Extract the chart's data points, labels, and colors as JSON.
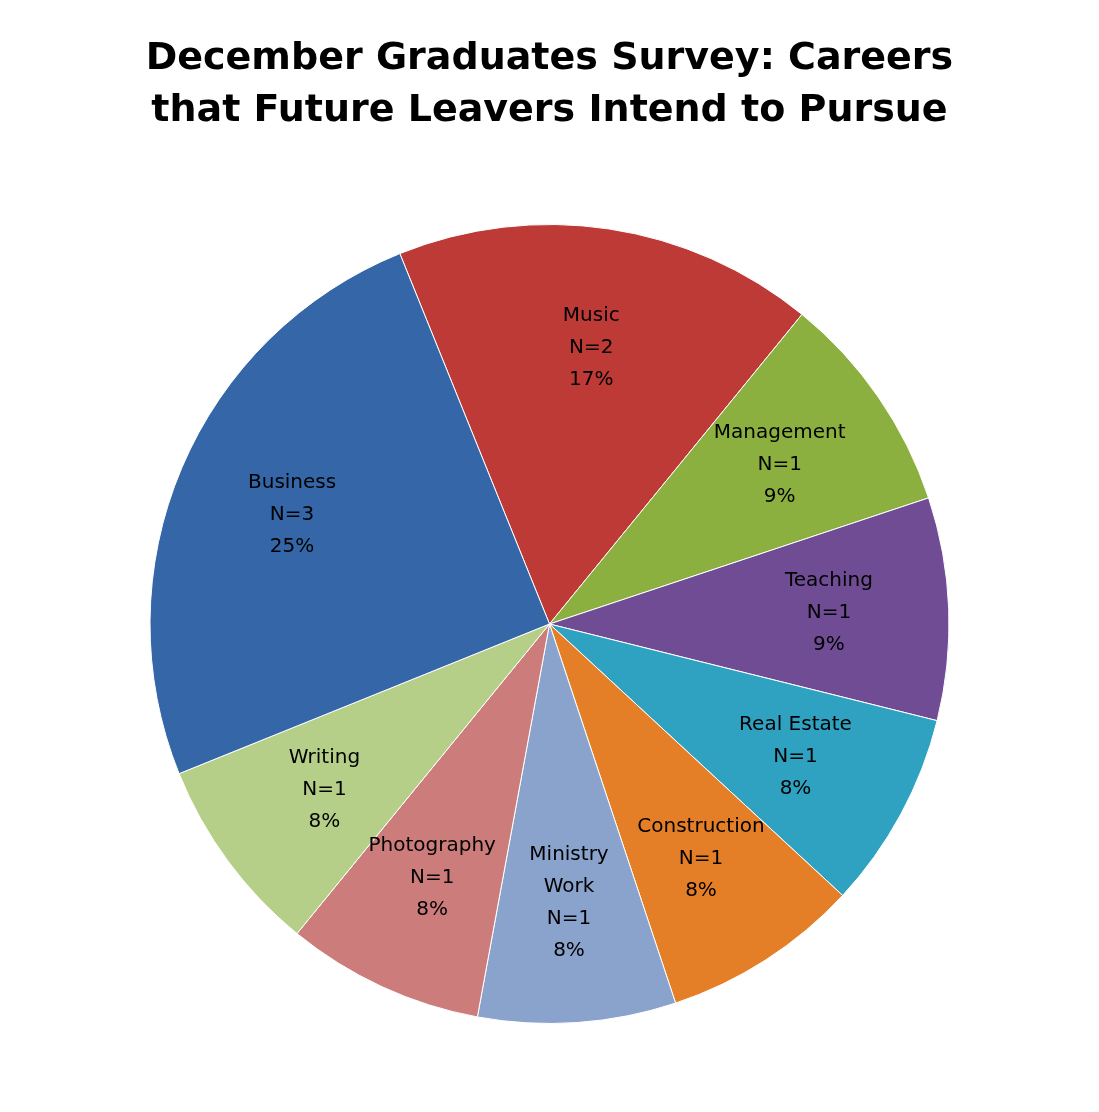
{
  "chart_data": {
    "type": "pie",
    "title": "December Graduates Survey: Careers that Future Leavers Intend to Pursue",
    "categories": [
      "Music",
      "Management",
      "Teaching",
      "Real Estate",
      "Construction",
      "Ministry Work",
      "Photography",
      "Writing",
      "Business"
    ],
    "values": [
      17,
      9,
      9,
      8,
      8,
      8,
      8,
      8,
      25
    ],
    "value_labels": [
      "N=2\n17%",
      "N=1\n9%",
      "N=1\n9%",
      "N=1\n8%",
      "N=1\n8%",
      "N=1\n8%",
      "N=1\n8%",
      "N=1\n8%",
      "N=3\n25%"
    ],
    "colors": [
      "#bd3a36",
      "#8cb040",
      "#6f4c94",
      "#2fa2c2",
      "#e57f27",
      "#8aa3cc",
      "#cc7c7b",
      "#b6cf88",
      "#3466a8"
    ],
    "legend": false
  }
}
